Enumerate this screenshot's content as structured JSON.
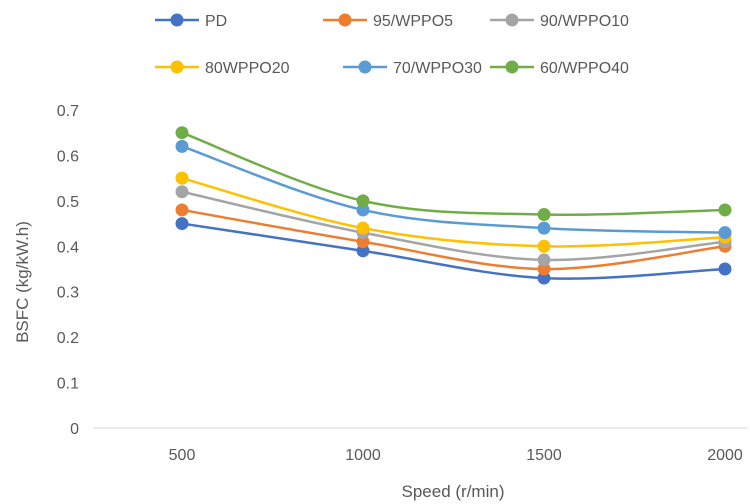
{
  "chart_data": {
    "type": "line",
    "title": "",
    "xlabel": "Speed (r/min)",
    "ylabel": "BSFC (kg/kW.h)",
    "categories": [
      "500",
      "1000",
      "1500",
      "2000"
    ],
    "y_ticks": [
      "0",
      "0.1",
      "0.2",
      "0.3",
      "0.4",
      "0.5",
      "0.6",
      "0.7"
    ],
    "ylim": [
      0,
      0.7
    ],
    "grid": false,
    "legend_position": "top",
    "series": [
      {
        "name": "PD",
        "color": "#4472C4",
        "values": [
          0.45,
          0.39,
          0.33,
          0.35
        ]
      },
      {
        "name": "95/WPPO5",
        "color": "#ED7D31",
        "values": [
          0.48,
          0.41,
          0.35,
          0.4
        ]
      },
      {
        "name": "90/WPPO10",
        "color": "#A5A5A5",
        "values": [
          0.52,
          0.43,
          0.37,
          0.41
        ]
      },
      {
        "name": "80WPPO20",
        "color": "#FFC000",
        "values": [
          0.55,
          0.44,
          0.4,
          0.42
        ]
      },
      {
        "name": "70/WPPO30",
        "color": "#5B9BD5",
        "values": [
          0.62,
          0.48,
          0.44,
          0.43
        ]
      },
      {
        "name": "60/WPPO40",
        "color": "#70AD47",
        "values": [
          0.65,
          0.5,
          0.47,
          0.48
        ]
      }
    ]
  }
}
